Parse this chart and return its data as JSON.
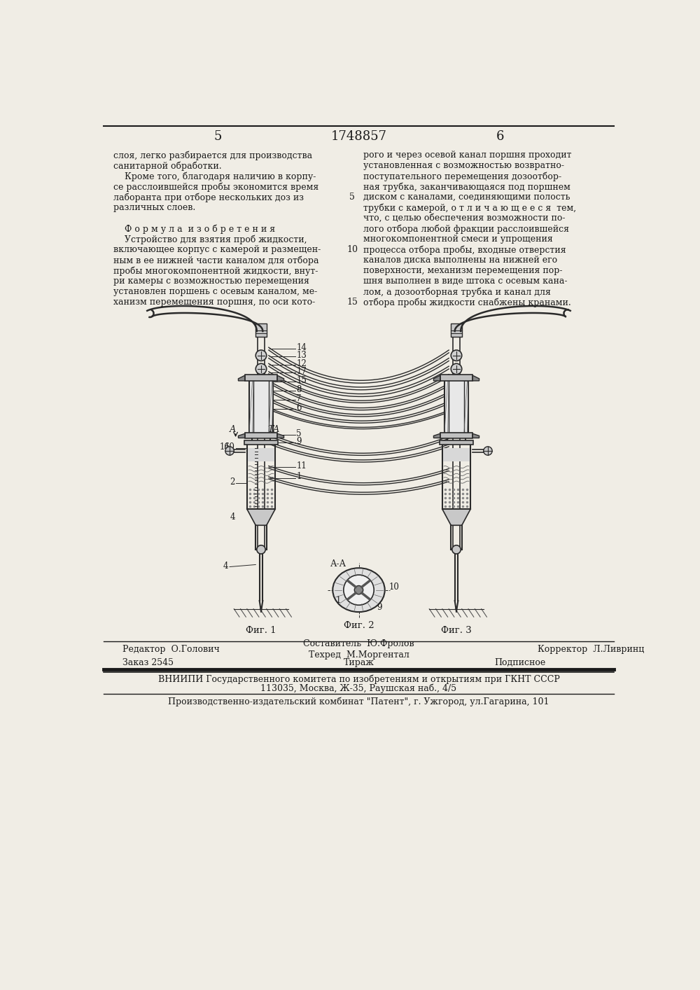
{
  "page_number_left": "5",
  "page_number_center": "1748857",
  "page_number_right": "6",
  "background_color": "#f0ede5",
  "text_color": "#1a1a1a",
  "left_column_text": [
    "слоя, легко разбирается для производства",
    "санитарной обработки.",
    "    Кроме того, благодаря наличию в корпу-",
    "се расслоившейся пробы экономится время",
    "лаборанта при отборе нескольких доз из",
    "различных слоев.",
    "",
    "    Ф о р м у л а  и з о б р е т е н и я",
    "    Устройство для взятия проб жидкости,",
    "включающее корпус с камерой и размещен-",
    "ным в ее нижней части каналом для отбора",
    "пробы многокомпонентной жидкости, внут-",
    "ри камеры с возможностью перемещения",
    "установлен поршень с осевым каналом, ме-",
    "ханизм перемещения поршня, по оси кото-"
  ],
  "right_column_text": [
    "рого и через осевой канал поршня проходит",
    "установленная с возможностью возвратно-",
    "поступательного перемещения дозоотбор-",
    "ная трубка, заканчивающаяся под поршнем",
    "диском с каналами, соединяющими полость",
    "трубки с камерой, о т л и ч а ю щ е е с я  тем,",
    "что, с целью обеспечения возможности по-",
    "лого отбора любой фракции расслоившейся",
    "многокомпонентной смеси и упрощения",
    "процесса отбора пробы, входные отверстия",
    "каналов диска выполнены на нижней его",
    "поверхности, механизм перемещения пор-",
    "шня выполнен в виде штока с осевым кана-",
    "лом, а дозоотборная трубка и канал для",
    "отбора пробы жидкости снабжены кранами."
  ],
  "fig1_caption": "Фиг. 1",
  "fig2_caption": "Фиг. 2",
  "fig3_caption": "Фиг. 3",
  "editor_line": "Редактор  О.Голович",
  "compiler_line": "Составитель  Ю.Фролов",
  "corrector_line": "Корректор  Л.Ливринц",
  "techred_line": "Техред  М.Моргентал",
  "order_line": "Заказ 2545",
  "circulation_line": "Тираж",
  "signed_line": "Подписное",
  "vniip_line1": "ВНИИПИ Государственного комитета по изобретениям и открытиям при ГКНТ СССР",
  "vniip_line2": "113035, Москва, Ж-35, Раушская наб., 4/5",
  "publisher_line": "Производственно-издательский комбинат \"Патент\", г. Ужгород, ул.Гагарина, 101"
}
